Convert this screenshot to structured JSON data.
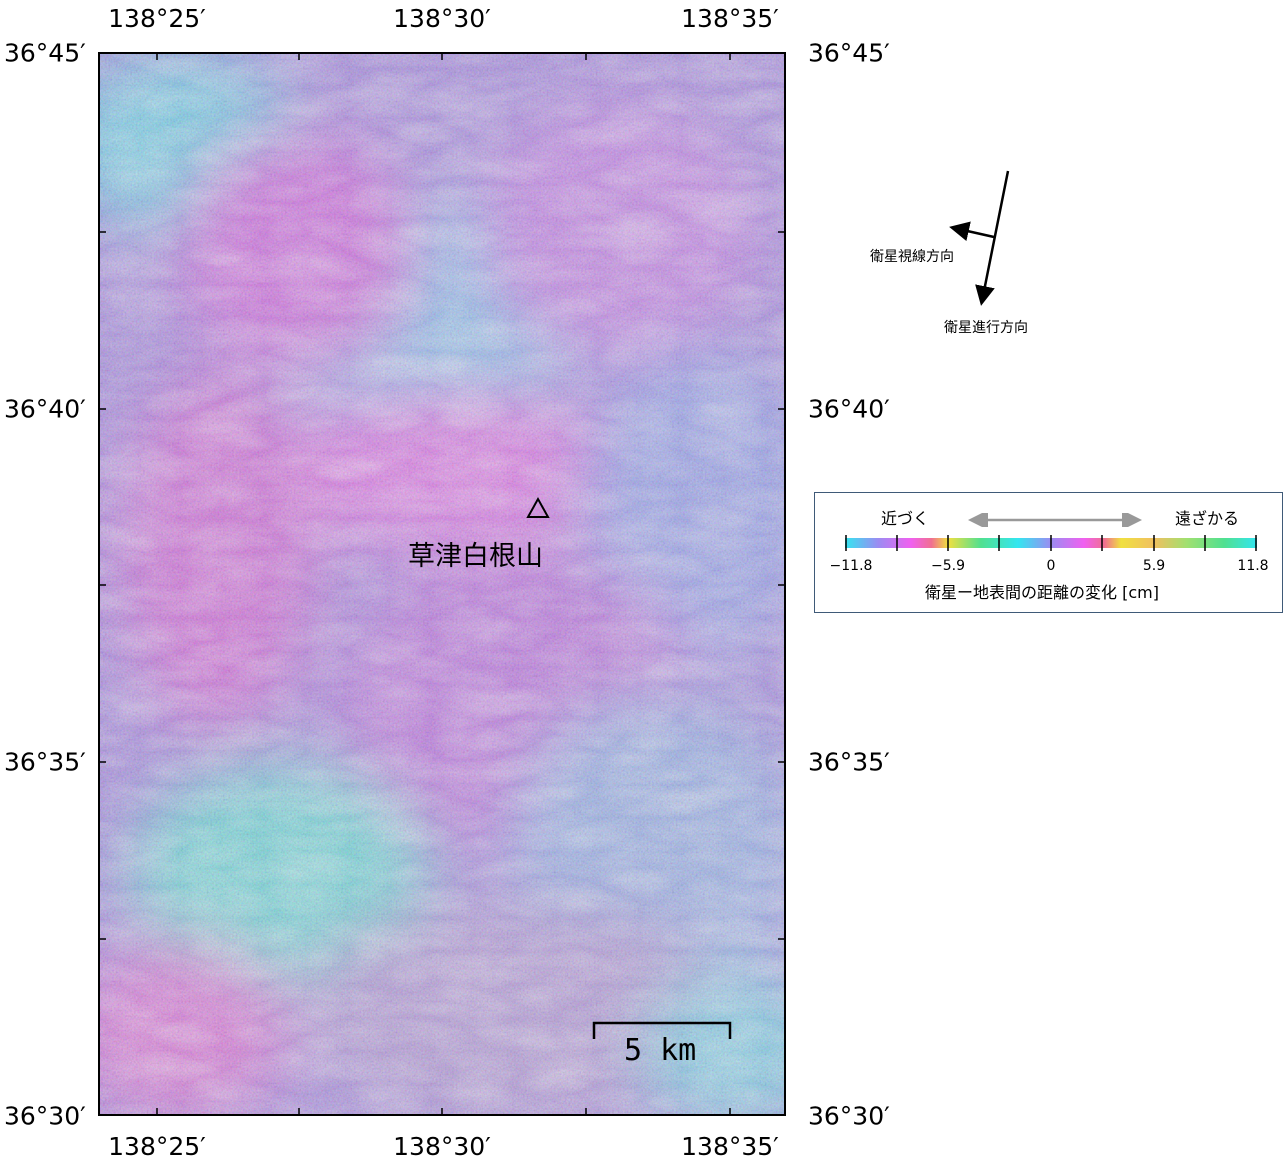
{
  "axes": {
    "longitude_labels": [
      "138°25′",
      "138°30′",
      "138°35′"
    ],
    "latitude_labels": [
      "36°45′",
      "36°40′",
      "36°35′",
      "36°30′"
    ]
  },
  "map": {
    "volcano_name": "草津白根山",
    "volcano_marker": "triangle-marker",
    "scale_bar_label": "5 km"
  },
  "direction": {
    "line_of_sight": "衛星視線方向",
    "flight_direction": "衛星進行方向"
  },
  "legend": {
    "approach": "近づく",
    "recede": "遠ざかる",
    "ticks": [
      "−11.8",
      "−5.9",
      "0",
      "5.9",
      "11.8"
    ],
    "caption": "衛星ー地表間の距離の変化 [cm]",
    "colors": [
      "#33e6f0",
      "#9b8cf2",
      "#f060f0",
      "#f0e040",
      "#50e090"
    ]
  },
  "colors": {
    "interferogram_cyan": "#6fd6e8",
    "interferogram_magenta": "#d46fe0",
    "interferogram_violet": "#9a86d8",
    "legend_border": "#3f5a78"
  }
}
